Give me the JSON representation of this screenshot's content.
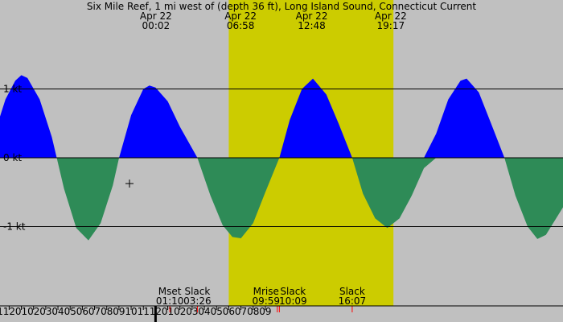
{
  "chart_data": {
    "type": "area",
    "title": "Six Mile Reef, 1 mi west of (depth 36 ft), Long Island Sound, Connecticut Current",
    "ylabel": "",
    "xlabel": "",
    "colors": {
      "background": "#c0c0c0",
      "daylight": "#cccc00",
      "flood": "#0000ff",
      "ebb": "#2e8b57",
      "lines": "#000000",
      "moon_marker": "#ff0000"
    },
    "x_range_hours": [
      -12.75,
      33.4
    ],
    "ylim": [
      -1.8,
      1.8
    ],
    "y_ticks": [
      {
        "value": 1,
        "label": "1 kt"
      },
      {
        "value": 0,
        "label": "0 kt"
      },
      {
        "value": -1,
        "label": "-1 kt"
      }
    ],
    "daylight_hours": [
      6.0,
      19.5
    ],
    "top_labels": [
      {
        "hour": 0.03,
        "date": "Apr 22",
        "time": "00:02"
      },
      {
        "hour": 6.97,
        "date": "Apr 22",
        "time": "06:58"
      },
      {
        "hour": 12.8,
        "date": "Apr 22",
        "time": "12:48"
      },
      {
        "hour": 19.28,
        "date": "Apr 22",
        "time": "19:17"
      }
    ],
    "events": [
      {
        "hour": 1.17,
        "name": "Mset",
        "time": "01:10"
      },
      {
        "hour": 3.43,
        "name": "Slack",
        "time": "03:26"
      },
      {
        "hour": 9.98,
        "name": "Mrise",
        "time": "09:59"
      },
      {
        "hour": 10.15,
        "name": "Slack",
        "time": "10:09"
      },
      {
        "hour": 16.12,
        "name": "Slack",
        "time": "16:07"
      }
    ],
    "hour_tick_labels": [
      "11",
      "12",
      "01",
      "02",
      "03",
      "04",
      "05",
      "06",
      "07",
      "08",
      "09",
      "10",
      "11",
      "12",
      "01",
      "02",
      "03",
      "04",
      "05",
      "06",
      "07",
      "08",
      "09"
    ],
    "series": [
      {
        "points": [
          [
            -12.75,
            0.6
          ],
          [
            -12.3,
            0.85
          ],
          [
            -11.5,
            1.12
          ],
          [
            -11.0,
            1.2
          ],
          [
            -10.5,
            1.16
          ],
          [
            -9.5,
            0.85
          ],
          [
            -8.5,
            0.3
          ],
          [
            -8.1,
            0
          ],
          [
            -7.5,
            -0.45
          ],
          [
            -6.5,
            -1.02
          ],
          [
            -5.5,
            -1.2
          ],
          [
            -4.5,
            -0.95
          ],
          [
            -3.5,
            -0.4
          ],
          [
            -2.99,
            0
          ],
          [
            -2.0,
            0.62
          ],
          [
            -1.0,
            1.0
          ],
          [
            -0.5,
            1.05
          ],
          [
            0.0,
            1.02
          ],
          [
            1.0,
            0.82
          ],
          [
            2.0,
            0.45
          ],
          [
            3.43,
            0
          ],
          [
            4.5,
            -0.55
          ],
          [
            5.5,
            -0.98
          ],
          [
            6.3,
            -1.15
          ],
          [
            7.0,
            -1.17
          ],
          [
            8.0,
            -0.95
          ],
          [
            9.0,
            -0.5
          ],
          [
            10.15,
            0
          ],
          [
            11.0,
            0.55
          ],
          [
            12.0,
            1.0
          ],
          [
            12.9,
            1.15
          ],
          [
            14.0,
            0.92
          ],
          [
            15.0,
            0.5
          ],
          [
            16.12,
            0
          ],
          [
            17.0,
            -0.52
          ],
          [
            18.0,
            -0.88
          ],
          [
            19.0,
            -1.02
          ],
          [
            20.0,
            -0.88
          ],
          [
            21.0,
            -0.55
          ],
          [
            22.0,
            -0.15
          ],
          [
            23.0,
            0.35
          ],
          [
            24.0,
            0.85
          ],
          [
            25.0,
            1.12
          ],
          [
            25.5,
            1.15
          ],
          [
            26.5,
            0.95
          ],
          [
            27.5,
            0.5
          ],
          [
            28.6,
            0
          ],
          [
            29.5,
            -0.55
          ],
          [
            30.5,
            -1.0
          ],
          [
            31.3,
            -1.18
          ],
          [
            32.0,
            -1.12
          ],
          [
            33.4,
            -0.72
          ]
        ]
      }
    ]
  }
}
